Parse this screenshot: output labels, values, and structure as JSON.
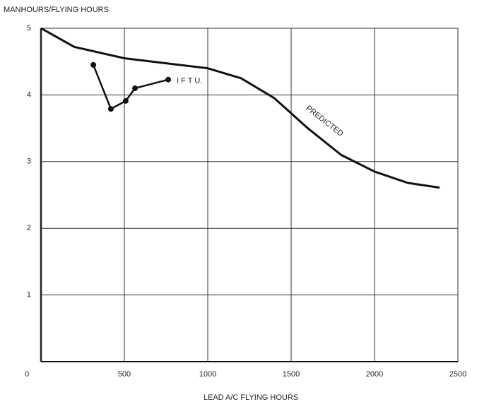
{
  "chart_data": {
    "type": "line",
    "y_label": "MANHOURS/FLYING HOURS",
    "x_label": "LEAD A/C FLYING HOURS",
    "xlim": [
      0,
      2500
    ],
    "xticks": [
      0,
      500,
      1000,
      1500,
      2000,
      2500
    ],
    "ylim": [
      0,
      5
    ],
    "yticks": [
      1,
      2,
      3,
      4,
      5
    ],
    "grid": true,
    "series": [
      {
        "name": "PREDICTED",
        "color": "#111111",
        "markers": false,
        "x": [
          0,
          50,
          200,
          500,
          1000,
          1200,
          1400,
          1600,
          1800,
          2000,
          2200,
          2390
        ],
        "values": [
          5.0,
          4.93,
          4.72,
          4.55,
          4.4,
          4.25,
          3.95,
          3.5,
          3.1,
          2.85,
          2.68,
          2.61
        ]
      },
      {
        "name": "I F T U.",
        "color": "#111111",
        "markers": true,
        "x": [
          314,
          419,
          508,
          564,
          763
        ],
        "values": [
          4.45,
          3.79,
          3.91,
          4.1,
          4.23
        ]
      }
    ]
  }
}
